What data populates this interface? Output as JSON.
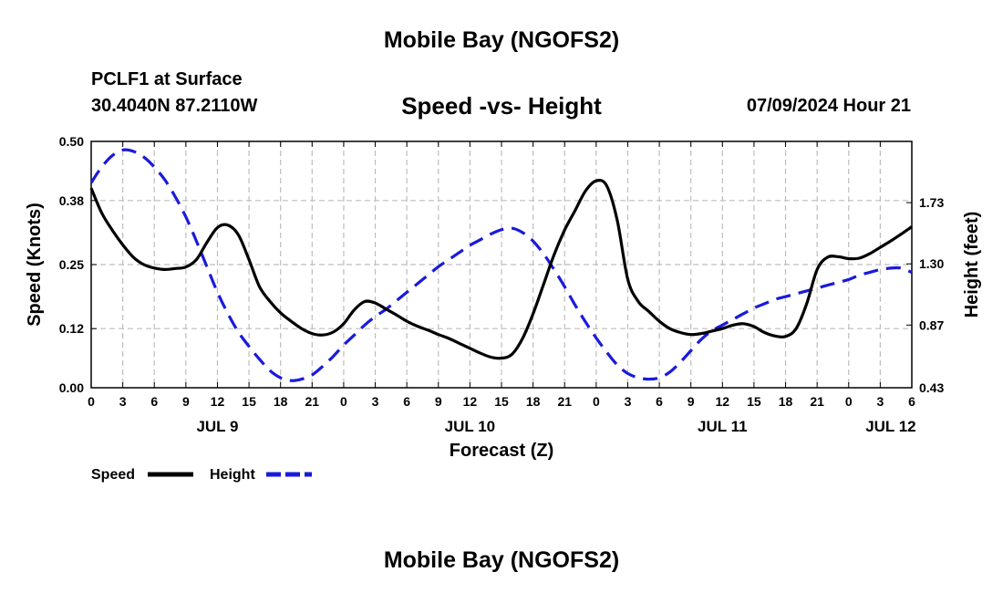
{
  "header": {
    "top_title": "Mobile Bay (NGOFS2)",
    "bottom_title": "Mobile Bay (NGOFS2)",
    "station": "PCLF1 at Surface",
    "coords": "30.4040N  87.2110W",
    "chart_title": "Speed -vs- Height",
    "datetime": "07/09/2024 Hour 21"
  },
  "chart_data": {
    "type": "line",
    "title": "Speed -vs- Height",
    "xlabel": "Forecast (Z)",
    "ylabel": "Speed (Knots)",
    "y2label": "Height (feet)",
    "x_range_hours": [
      0,
      78
    ],
    "x_tick_step_hours": 3,
    "x_tick_labels": [
      "0",
      "3",
      "6",
      "9",
      "12",
      "15",
      "18",
      "21",
      "0",
      "3",
      "6",
      "9",
      "12",
      "15",
      "18",
      "21",
      "0",
      "3",
      "6",
      "9",
      "12",
      "15",
      "18",
      "21",
      "0",
      "3",
      "6"
    ],
    "date_labels": [
      {
        "label": "JUL 9",
        "hour": 12
      },
      {
        "label": "JUL 10",
        "hour": 36
      },
      {
        "label": "JUL 11",
        "hour": 60
      },
      {
        "label": "JUL 12",
        "hour": 76
      }
    ],
    "ylim": [
      0,
      0.5
    ],
    "y_ticks": [
      "0.00",
      "0.12",
      "0.25",
      "0.38",
      "0.50"
    ],
    "y2lim": [
      0.43,
      2.16
    ],
    "y2_ticks": [
      "0.43",
      "0.87",
      "1.30",
      "1.73"
    ],
    "grid": true,
    "legend_position": "bottom-left",
    "series": [
      {
        "name": "Speed",
        "axis": "left",
        "color": "#000000",
        "dash": "solid",
        "x": [
          0,
          1,
          2,
          3,
          4,
          5,
          6,
          7,
          8,
          9,
          10,
          11,
          12,
          13,
          14,
          15,
          16,
          17,
          18,
          19,
          20,
          21,
          22,
          23,
          24,
          25,
          26,
          27,
          28,
          29,
          30,
          31,
          32,
          33,
          34,
          35,
          36,
          37,
          38,
          39,
          40,
          41,
          42,
          43,
          44,
          45,
          46,
          47,
          48,
          49,
          50,
          51,
          52,
          53,
          54,
          55,
          56,
          57,
          58,
          59,
          60,
          61,
          62,
          63,
          64,
          65,
          66,
          67,
          68,
          69,
          70,
          71,
          72,
          73,
          74,
          75,
          76,
          77,
          78
        ],
        "values": [
          0.405,
          0.355,
          0.32,
          0.29,
          0.265,
          0.25,
          0.243,
          0.24,
          0.242,
          0.245,
          0.26,
          0.295,
          0.325,
          0.33,
          0.31,
          0.26,
          0.205,
          0.175,
          0.152,
          0.135,
          0.12,
          0.11,
          0.107,
          0.113,
          0.13,
          0.158,
          0.175,
          0.172,
          0.16,
          0.148,
          0.135,
          0.125,
          0.117,
          0.108,
          0.1,
          0.09,
          0.08,
          0.07,
          0.062,
          0.06,
          0.068,
          0.1,
          0.15,
          0.21,
          0.27,
          0.32,
          0.36,
          0.4,
          0.42,
          0.41,
          0.34,
          0.22,
          0.175,
          0.155,
          0.135,
          0.12,
          0.112,
          0.108,
          0.11,
          0.115,
          0.12,
          0.127,
          0.13,
          0.124,
          0.112,
          0.105,
          0.104,
          0.12,
          0.17,
          0.24,
          0.265,
          0.266,
          0.262,
          0.263,
          0.272,
          0.285,
          0.298,
          0.312,
          0.327
        ]
      },
      {
        "name": "Height",
        "axis": "right",
        "color": "#1a1adc",
        "dash": "dashed",
        "x": [
          0,
          1,
          2,
          3,
          4,
          5,
          6,
          7,
          8,
          9,
          10,
          11,
          12,
          13,
          14,
          15,
          16,
          17,
          18,
          19,
          20,
          21,
          22,
          23,
          24,
          25,
          26,
          27,
          28,
          29,
          30,
          31,
          32,
          33,
          34,
          35,
          36,
          37,
          38,
          39,
          40,
          41,
          42,
          43,
          44,
          45,
          46,
          47,
          48,
          49,
          50,
          51,
          52,
          53,
          54,
          55,
          56,
          57,
          58,
          59,
          60,
          61,
          62,
          63,
          64,
          65,
          66,
          67,
          68,
          69,
          70,
          71,
          72,
          73,
          74,
          75,
          76,
          77,
          78
        ],
        "values": [
          1.87,
          1.98,
          2.06,
          2.1,
          2.09,
          2.05,
          1.98,
          1.89,
          1.77,
          1.63,
          1.46,
          1.28,
          1.1,
          0.95,
          0.82,
          0.72,
          0.63,
          0.55,
          0.5,
          0.48,
          0.49,
          0.52,
          0.58,
          0.65,
          0.73,
          0.8,
          0.87,
          0.93,
          0.98,
          1.04,
          1.1,
          1.16,
          1.22,
          1.28,
          1.33,
          1.38,
          1.43,
          1.47,
          1.51,
          1.54,
          1.55,
          1.52,
          1.46,
          1.37,
          1.26,
          1.14,
          1.01,
          0.89,
          0.78,
          0.68,
          0.59,
          0.53,
          0.5,
          0.49,
          0.5,
          0.54,
          0.61,
          0.69,
          0.77,
          0.83,
          0.87,
          0.91,
          0.95,
          0.99,
          1.02,
          1.05,
          1.07,
          1.09,
          1.11,
          1.13,
          1.15,
          1.17,
          1.19,
          1.22,
          1.24,
          1.26,
          1.27,
          1.27,
          1.24
        ]
      }
    ]
  }
}
